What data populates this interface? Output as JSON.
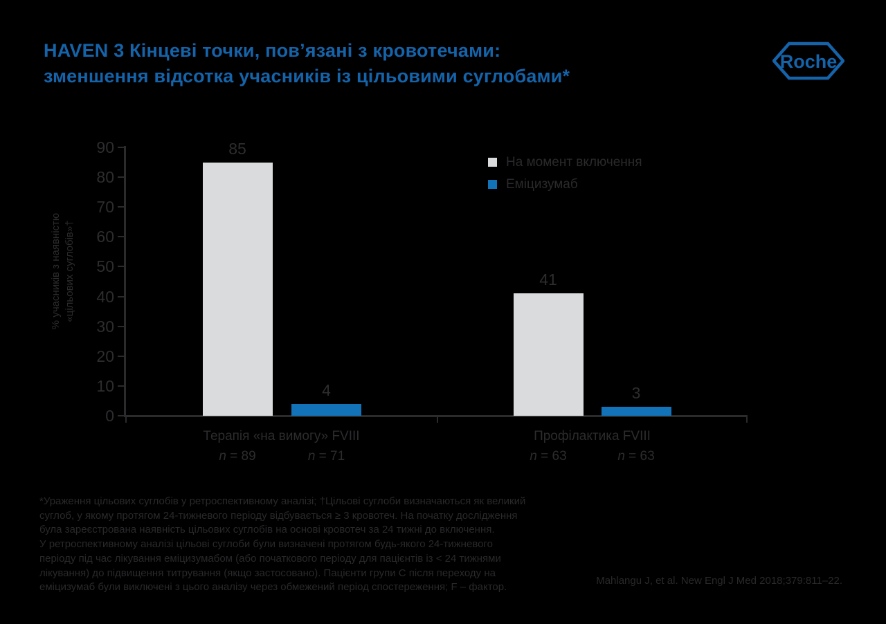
{
  "colors": {
    "background": "#000000",
    "title_blue": "#1563a9",
    "bar_gray": "#dadbdd",
    "bar_blue": "#1273b9",
    "chart_text": "#2d2d2f",
    "axis": "#2b2b2d"
  },
  "header": {
    "title_lines": [
      "HAVEN 3 Кінцеві точки, пов’язані з кровотечами:",
      "зменшення відсотка учасників із цільовими суглобами*"
    ],
    "logo_text": "Roche"
  },
  "chart_data": {
    "type": "bar",
    "title": "",
    "ylabel_lines": [
      "% учасників з наявністю",
      "«цільових суглобів»†"
    ],
    "ylim": [
      0,
      90
    ],
    "yticks": [
      0,
      10,
      20,
      30,
      40,
      50,
      60,
      70,
      80,
      90
    ],
    "grid": false,
    "legend_position": "top-right",
    "series": [
      {
        "name": "На момент включення",
        "color": "#dadbdd"
      },
      {
        "name": "Еміцизумаб",
        "color": "#1273b9"
      }
    ],
    "groups": [
      {
        "label": "Терапія «на вимогу» FVIII",
        "bars": [
          {
            "series": "На момент включення",
            "value": 85,
            "n_label": "n = 89"
          },
          {
            "series": "Еміцизумаб",
            "value": 4,
            "n_label": "n = 71"
          }
        ]
      },
      {
        "label": "Профілактика FVIII",
        "bars": [
          {
            "series": "На момент включення",
            "value": 41,
            "n_label": "n = 63"
          },
          {
            "series": "Еміцизумаб",
            "value": 3,
            "n_label": "n = 63"
          }
        ]
      }
    ]
  },
  "footnote": {
    "lines": [
      "*Ураження цільових суглобів у ретроспективному аналізі; †Цільові суглоби визначаються як великий",
      "суглоб, у якому протягом 24-тижневого періоду відбувається ≥ 3 кровотеч. На початку дослідження",
      "була зареєстрована наявність цільових суглобів на основі кровотеч за 24 тижні до включення.",
      "У ретроспективному аналізі цільові суглоби були визначені протягом будь-якого 24-тижневого",
      "періоду під час лікування еміцизумабом (або початкового періоду для пацієнтів із < 24 тижнями",
      "лікування) до підвищення титрування (якщо застосовано). Пацієнти групи С після переходу на",
      "еміцизумаб були виключені з цього аналізу через обмежений період спостереження; F – фактор."
    ]
  },
  "citation": "Mahlangu J, et al. New Engl J Med 2018;379:811–22."
}
